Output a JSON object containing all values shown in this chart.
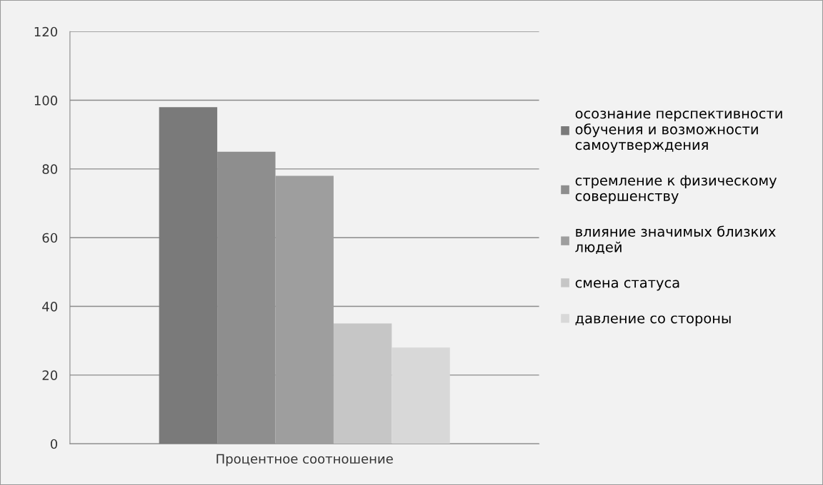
{
  "chart_data": {
    "type": "bar",
    "categories": [
      "Процентное соотношение"
    ],
    "series": [
      {
        "name": "осознание перспективности\nобучения и возможности\nсамоутверждения",
        "color": "#7a7a7a",
        "values": [
          98
        ]
      },
      {
        "name": "стремление к физическому\nсовершенству",
        "color": "#8e8e8e",
        "values": [
          85
        ]
      },
      {
        "name": "влияние значимых близких\nлюдей",
        "color": "#9e9e9e",
        "values": [
          78
        ]
      },
      {
        "name": "смена статуса",
        "color": "#c6c6c6",
        "values": [
          35
        ]
      },
      {
        "name": "давление со стороны",
        "color": "#d8d8d8",
        "values": [
          28
        ]
      }
    ],
    "ylim": [
      0,
      120
    ],
    "yticks": [
      0,
      20,
      40,
      60,
      80,
      100,
      120
    ],
    "grid": "y",
    "legend": "right"
  }
}
